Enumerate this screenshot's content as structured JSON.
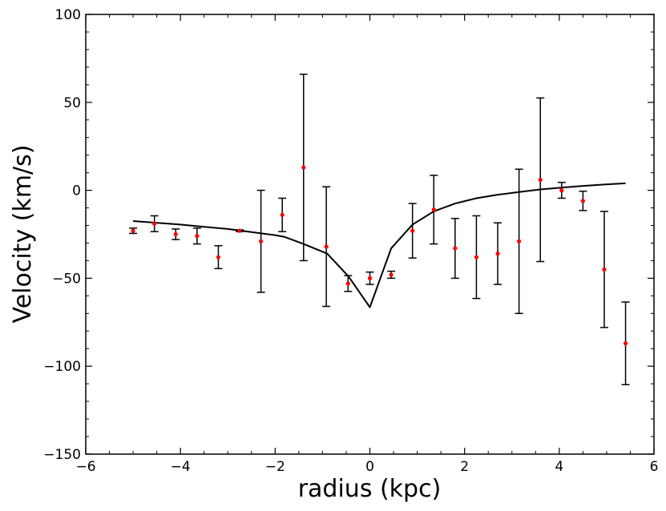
{
  "chart_data": {
    "type": "scatter",
    "title": "",
    "xlabel": "radius (kpc)",
    "ylabel": "Velocity (km/s)",
    "xlim": [
      -6,
      6
    ],
    "ylim": [
      -150,
      100
    ],
    "xticks": [
      -6,
      -4,
      -2,
      0,
      2,
      4,
      6
    ],
    "yticks": [
      -150,
      -100,
      -50,
      0,
      50,
      100
    ],
    "xtick_labels": [
      "−6",
      "−4",
      "−2",
      "0",
      "2",
      "4",
      "6"
    ],
    "ytick_labels": [
      "−150",
      "−100",
      "−50",
      "0",
      "50",
      "100"
    ],
    "grid": false,
    "colors": {
      "points": "#ff0000",
      "model": "#000000",
      "errorbars": "#000000"
    },
    "series": [
      {
        "kind": "errorbar-points",
        "points": [
          {
            "x": -5.0,
            "y": -23,
            "err": 1.5
          },
          {
            "x": -4.55,
            "y": -19,
            "err": 4.5
          },
          {
            "x": -4.1,
            "y": -25,
            "err": 3
          },
          {
            "x": -3.65,
            "y": -26,
            "err": 4.5
          },
          {
            "x": -3.2,
            "y": -38,
            "err": 6.5
          },
          {
            "x": -2.75,
            "y": -23,
            "err": 0.5
          },
          {
            "x": -2.3,
            "y": -29,
            "err": 29
          },
          {
            "x": -1.85,
            "y": -14,
            "err": 9.5
          },
          {
            "x": -1.4,
            "y": 13,
            "err": 53
          },
          {
            "x": -0.92,
            "y": -32,
            "err": 34
          },
          {
            "x": -0.46,
            "y": -53,
            "err": 4.5
          },
          {
            "x": 0.0,
            "y": -50,
            "err": 3.5
          },
          {
            "x": 0.45,
            "y": -48,
            "err": 2
          },
          {
            "x": 0.9,
            "y": -23,
            "err": 15.5
          },
          {
            "x": 1.35,
            "y": -11,
            "err": 19.5
          },
          {
            "x": 1.8,
            "y": -33,
            "err": 17
          },
          {
            "x": 2.25,
            "y": -38,
            "err": 23.5
          },
          {
            "x": 2.7,
            "y": -36,
            "err": 17.5
          },
          {
            "x": 3.15,
            "y": -29,
            "err": 41
          },
          {
            "x": 3.6,
            "y": 6,
            "err": 46.5
          },
          {
            "x": 4.05,
            "y": 0,
            "err": 4.5
          },
          {
            "x": 4.5,
            "y": -6,
            "err": 5.5
          },
          {
            "x": 4.95,
            "y": -45,
            "err": 33
          },
          {
            "x": 5.4,
            "y": -87,
            "err": 23.5
          }
        ]
      },
      {
        "kind": "line",
        "x": [
          -5.0,
          -4.0,
          -3.0,
          -2.0,
          -1.8,
          -1.4,
          -0.9,
          -0.45,
          0.0,
          0.45,
          0.9,
          1.35,
          1.8,
          2.25,
          2.7,
          3.15,
          3.6,
          4.05,
          4.5,
          4.95,
          5.4
        ],
        "y": [
          -17.5,
          -19.5,
          -22,
          -25.5,
          -26.5,
          -30.5,
          -36,
          -49,
          -66.5,
          -33,
          -19.5,
          -12,
          -7.5,
          -4.5,
          -2.5,
          -1,
          0.5,
          1.5,
          2.5,
          3.3,
          4
        ]
      }
    ]
  }
}
